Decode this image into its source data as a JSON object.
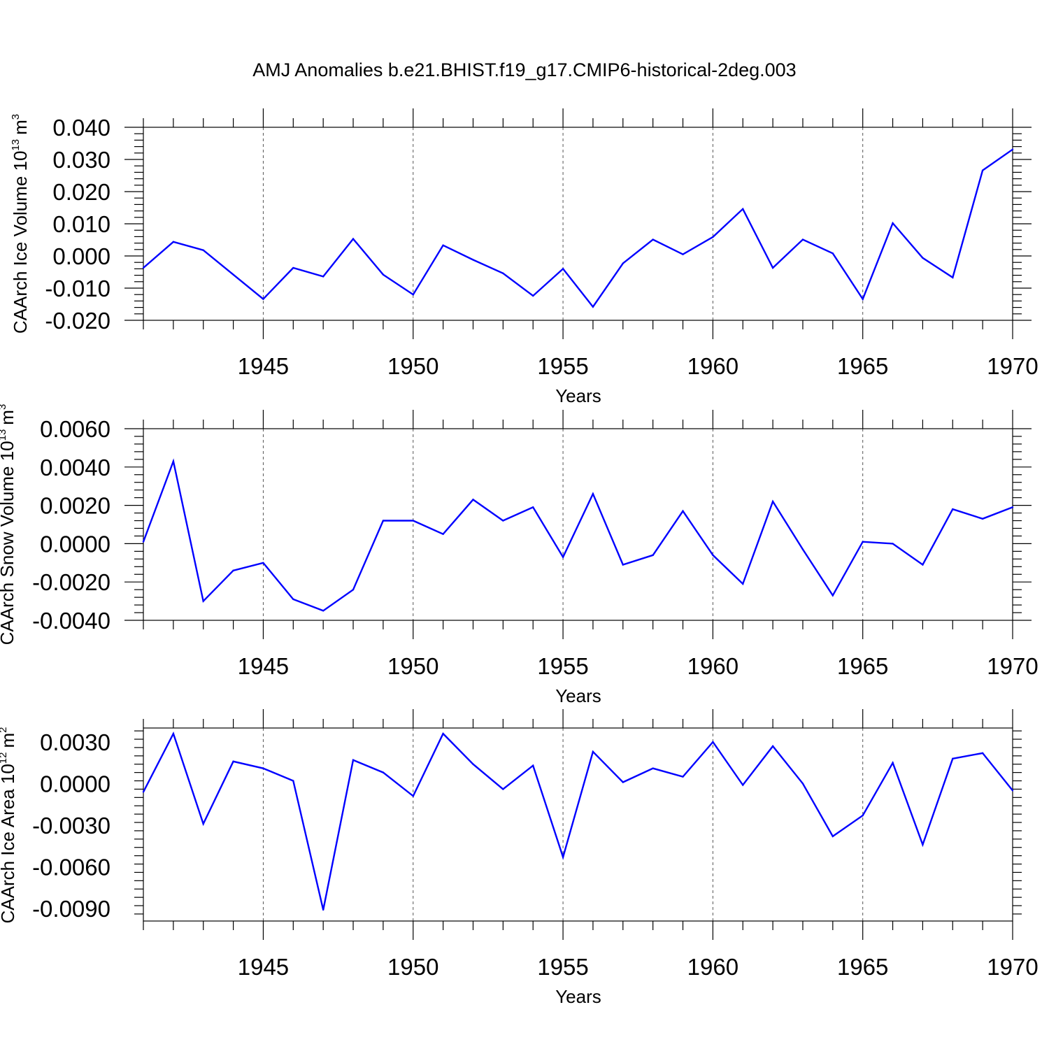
{
  "figure": {
    "title": "AMJ Anomalies b.e21.BHIST.f19_g17.CMIP6-historical-2deg.003"
  },
  "chart_data": [
    {
      "type": "line",
      "title": "AMJ Anomalies b.e21.BHIST.f19_g17.CMIP6-historical-2deg.003",
      "ylabel": "CAArch Ice Volume 10",
      "ylabel_exp": "13",
      "ylabel_unit": "m",
      "ylabel_unit_exp": "3",
      "xlabel": "Years",
      "xlim": [
        1941,
        1970
      ],
      "ylim": [
        -0.02,
        0.04
      ],
      "yticks": [
        -0.02,
        -0.01,
        0.0,
        0.01,
        0.02,
        0.03,
        0.04
      ],
      "ytick_labels": [
        "-0.020",
        "-0.010",
        "0.000",
        "0.010",
        "0.020",
        "0.030",
        "0.040"
      ],
      "xticks": [
        1945,
        1950,
        1955,
        1960,
        1965,
        1970
      ],
      "xtick_labels": [
        "1945",
        "1950",
        "1955",
        "1960",
        "1965",
        "1970"
      ],
      "line_color": "#0000ff",
      "grid": "dashed vertical at major x ticks",
      "x": [
        1941,
        1942,
        1943,
        1944,
        1945,
        1946,
        1947,
        1948,
        1949,
        1950,
        1951,
        1952,
        1953,
        1954,
        1955,
        1956,
        1957,
        1958,
        1959,
        1960,
        1961,
        1962,
        1963,
        1964,
        1965,
        1966,
        1967,
        1968,
        1969,
        1970
      ],
      "values": [
        -0.0037,
        0.0044,
        0.0018,
        -0.0058,
        -0.0134,
        -0.0037,
        -0.0064,
        0.0053,
        -0.0058,
        -0.012,
        0.0033,
        -0.0012,
        -0.0054,
        -0.0124,
        -0.004,
        -0.0158,
        -0.0023,
        0.0051,
        0.0005,
        0.0059,
        0.0146,
        -0.0037,
        0.0051,
        0.0008,
        -0.0134,
        0.0102,
        -0.0006,
        -0.0067,
        0.0266,
        0.0331
      ]
    },
    {
      "type": "line",
      "ylabel": "CAArch Snow Volume 10",
      "ylabel_exp": "13",
      "ylabel_unit": "m",
      "ylabel_unit_exp": "3",
      "xlabel": "Years",
      "xlim": [
        1941,
        1970
      ],
      "ylim": [
        -0.004,
        0.006
      ],
      "yticks": [
        -0.004,
        -0.002,
        0.0,
        0.002,
        0.004,
        0.006
      ],
      "ytick_labels": [
        "-0.0040",
        "-0.0020",
        "0.0000",
        "0.0020",
        "0.0040",
        "0.0060"
      ],
      "xticks": [
        1945,
        1950,
        1955,
        1960,
        1965,
        1970
      ],
      "xtick_labels": [
        "1945",
        "1950",
        "1955",
        "1960",
        "1965",
        "1970"
      ],
      "line_color": "#0000ff",
      "grid": "dashed vertical at major x ticks",
      "x": [
        1941,
        1942,
        1943,
        1944,
        1945,
        1946,
        1947,
        1948,
        1949,
        1950,
        1951,
        1952,
        1953,
        1954,
        1955,
        1956,
        1957,
        1958,
        1959,
        1960,
        1961,
        1962,
        1963,
        1964,
        1965,
        1966,
        1967,
        1968,
        1969,
        1970
      ],
      "values": [
        0.0001,
        0.0043,
        -0.003,
        -0.0014,
        -0.001,
        -0.0029,
        -0.0035,
        -0.0024,
        0.0012,
        0.0012,
        0.0005,
        0.0023,
        0.0012,
        0.0019,
        -0.0007,
        0.0026,
        -0.0011,
        -0.0006,
        0.0017,
        -0.0006,
        -0.0021,
        0.0022,
        -0.0003,
        -0.0027,
        0.0001,
        0.0,
        -0.0011,
        0.0018,
        0.0013,
        0.0019
      ]
    },
    {
      "type": "line",
      "ylabel": "CAArch Ice Area 10",
      "ylabel_exp": "12",
      "ylabel_unit": "m",
      "ylabel_unit_exp": "2",
      "xlabel": "Years",
      "xlim": [
        1941,
        1970
      ],
      "ylim": [
        -0.01,
        0.004
      ],
      "yticks": [
        -0.009,
        -0.006,
        -0.003,
        0.0,
        0.003
      ],
      "ytick_labels": [
        "-0.0090",
        "-0.0060",
        "-0.0030",
        "0.0000",
        "0.0030"
      ],
      "xticks": [
        1945,
        1950,
        1955,
        1960,
        1965,
        1970
      ],
      "xtick_labels": [
        "1945",
        "1950",
        "1955",
        "1960",
        "1965",
        "1970"
      ],
      "line_color": "#0000ff",
      "grid": "dashed vertical at major x ticks",
      "x": [
        1941,
        1942,
        1943,
        1944,
        1945,
        1946,
        1947,
        1948,
        1949,
        1950,
        1951,
        1952,
        1953,
        1954,
        1955,
        1956,
        1957,
        1958,
        1959,
        1960,
        1961,
        1962,
        1963,
        1964,
        1965,
        1966,
        1967,
        1968,
        1969,
        1970
      ],
      "values": [
        -0.0006,
        0.0036,
        -0.0029,
        0.0016,
        0.0011,
        0.0002,
        -0.0091,
        0.0017,
        0.0008,
        -0.0009,
        0.0036,
        0.0014,
        -0.0004,
        0.0013,
        -0.0053,
        0.0023,
        0.0001,
        0.0011,
        0.0005,
        0.003,
        -0.0001,
        0.0027,
        0.0,
        -0.0038,
        -0.0023,
        0.0015,
        -0.0044,
        0.0018,
        0.0022,
        -0.0005
      ]
    }
  ]
}
